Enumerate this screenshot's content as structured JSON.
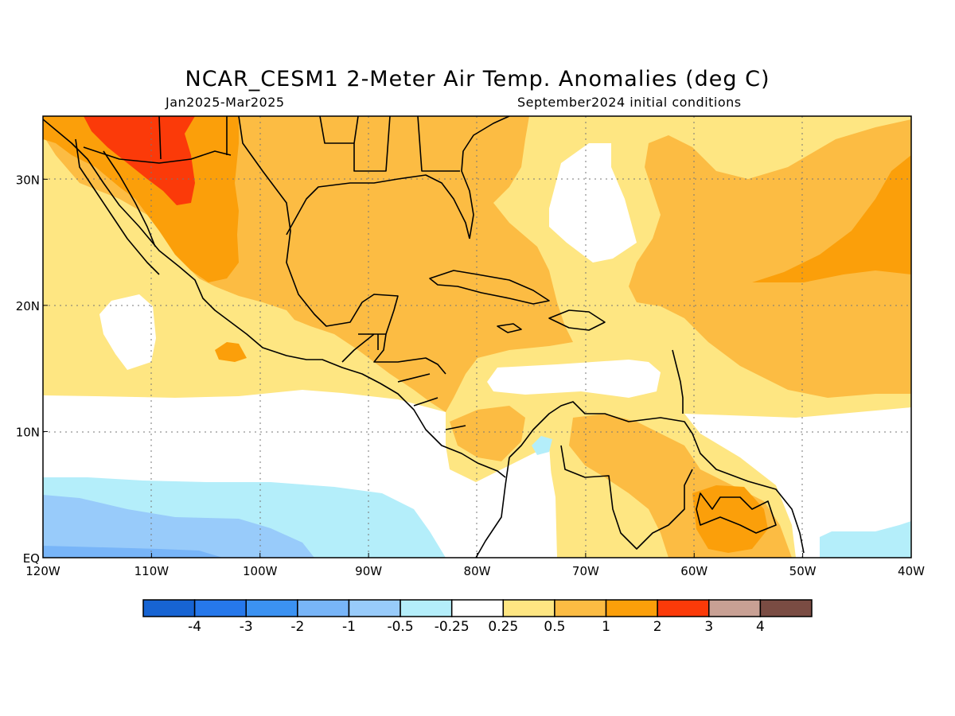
{
  "title": "NCAR_CESM1 2-Meter Air Temp. Anomalies (deg C)",
  "subtitle_period": "Jan2025-Mar2025",
  "subtitle_init": "September2024 initial conditions",
  "map": {
    "lon_range": [
      -120,
      -40
    ],
    "lat_range": [
      0,
      35
    ],
    "gridlines": true,
    "x_ticks": [
      {
        "lon": -120,
        "label": "120W"
      },
      {
        "lon": -110,
        "label": "110W"
      },
      {
        "lon": -100,
        "label": "100W"
      },
      {
        "lon": -90,
        "label": "90W"
      },
      {
        "lon": -80,
        "label": "80W"
      },
      {
        "lon": -70,
        "label": "70W"
      },
      {
        "lon": -60,
        "label": "60W"
      },
      {
        "lon": -50,
        "label": "50W"
      },
      {
        "lon": -40,
        "label": "40W"
      }
    ],
    "y_ticks": [
      {
        "lat": 0,
        "label": "EQ"
      },
      {
        "lat": 10,
        "label": "10N"
      },
      {
        "lat": 20,
        "label": "20N"
      },
      {
        "lat": 30,
        "label": "30N"
      }
    ]
  },
  "colorbar": {
    "colors": [
      "#1764d3",
      "#2678eb",
      "#3b92f2",
      "#78b5f8",
      "#98cbfa",
      "#b4eefa",
      "#ffffff",
      "#fee682",
      "#fcbc43",
      "#fb9f0a",
      "#fb3a09",
      "#c8a094",
      "#7a4c43"
    ],
    "labels": [
      "-4",
      "-3",
      "-2",
      "-1",
      "-0.5",
      "-0.25",
      "0.25",
      "0.5",
      "1",
      "2",
      "3",
      "4"
    ]
  }
}
